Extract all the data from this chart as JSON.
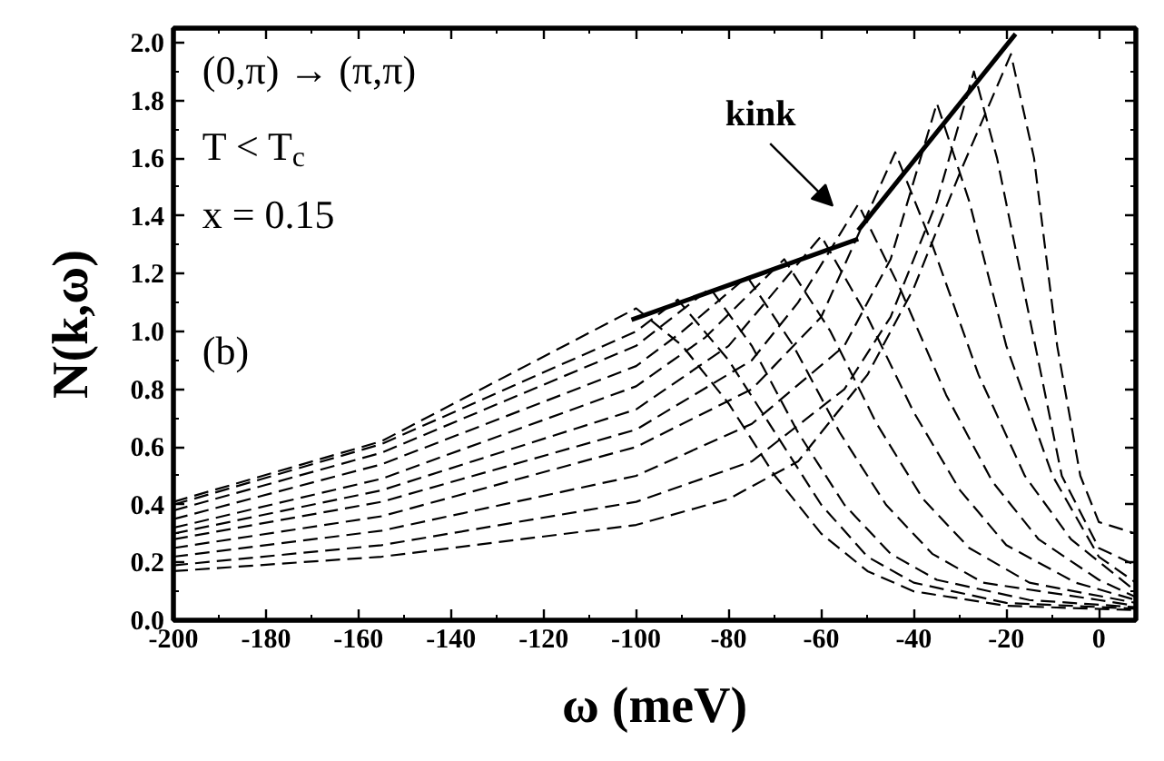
{
  "chart_data": {
    "type": "line",
    "xlabel": "ω (meV)",
    "ylabel": "N(k,ω)",
    "xlim": [
      -200,
      8
    ],
    "ylim": [
      0,
      2.05
    ],
    "xticks": [
      -200,
      {
        "value": -190,
        "label": null
      },
      -180,
      {
        "value": -170,
        "label": null
      },
      -160,
      {
        "value": -150,
        "label": null
      },
      -140,
      {
        "value": -130,
        "label": null
      },
      -120,
      {
        "value": -110,
        "label": null
      },
      -100,
      {
        "value": -90,
        "label": null
      },
      -80,
      {
        "value": -70,
        "label": null
      },
      -60,
      {
        "value": -50,
        "label": null
      },
      -40,
      {
        "value": -30,
        "label": null
      },
      -20,
      {
        "value": -10,
        "label": null
      },
      0
    ],
    "yticks": [
      {
        "value": 0,
        "label": "0.0"
      },
      {
        "value": 0.1,
        "label": null
      },
      {
        "value": 0.2,
        "label": "0.2"
      },
      {
        "value": 0.3,
        "label": null
      },
      {
        "value": 0.4,
        "label": "0.4"
      },
      {
        "value": 0.5,
        "label": null
      },
      {
        "value": 0.6,
        "label": "0.6"
      },
      {
        "value": 0.7,
        "label": null
      },
      {
        "value": 0.8,
        "label": "0.8"
      },
      {
        "value": 0.9,
        "label": null
      },
      {
        "value": 1.0,
        "label": "1.0"
      },
      {
        "value": 1.1,
        "label": null
      },
      {
        "value": 1.2,
        "label": "1.2"
      },
      {
        "value": 1.3,
        "label": null
      },
      {
        "value": 1.4,
        "label": "1.4"
      },
      {
        "value": 1.5,
        "label": null
      },
      {
        "value": 1.6,
        "label": "1.6"
      },
      {
        "value": 1.7,
        "label": null
      },
      {
        "value": 1.8,
        "label": "1.8"
      },
      {
        "value": 1.9,
        "label": null
      },
      {
        "value": 2.0,
        "label": "2.0"
      }
    ],
    "line_style": "dashed",
    "series": [
      {
        "color": "#000000",
        "x": [
          -200,
          -155,
          -100,
          -90,
          -80,
          -70,
          -60,
          -50,
          -40,
          -20,
          8
        ],
        "values": [
          0.41,
          0.62,
          1.08,
          0.95,
          0.75,
          0.5,
          0.3,
          0.17,
          0.1,
          0.05,
          0.035
        ]
      },
      {
        "color": "#000000",
        "x": [
          -200,
          -155,
          -100,
          -91,
          -80,
          -70,
          -60,
          -50,
          -40,
          -20,
          8
        ],
        "values": [
          0.4,
          0.61,
          1.0,
          1.11,
          0.9,
          0.65,
          0.4,
          0.22,
          0.13,
          0.06,
          0.04
        ]
      },
      {
        "color": "#000000",
        "x": [
          -200,
          -155,
          -100,
          -84,
          -75,
          -65,
          -55,
          -45,
          -35,
          -15,
          8
        ],
        "values": [
          0.38,
          0.58,
          0.95,
          1.15,
          0.95,
          0.65,
          0.4,
          0.23,
          0.14,
          0.07,
          0.045
        ]
      },
      {
        "color": "#000000",
        "x": [
          -200,
          -155,
          -100,
          -90,
          -76,
          -66,
          -56,
          -46,
          -36,
          -25,
          0,
          8
        ],
        "values": [
          0.35,
          0.54,
          0.88,
          1.0,
          1.19,
          0.95,
          0.65,
          0.4,
          0.23,
          0.13,
          0.07,
          0.05
        ]
      },
      {
        "color": "#000000",
        "x": [
          -200,
          -155,
          -100,
          -85,
          -68,
          -58,
          -48,
          -38,
          -28,
          -15,
          8
        ],
        "values": [
          0.32,
          0.49,
          0.81,
          0.98,
          1.25,
          1.0,
          0.68,
          0.42,
          0.25,
          0.13,
          0.06
        ]
      },
      {
        "color": "#000000",
        "x": [
          -200,
          -155,
          -100,
          -80,
          -60,
          -50,
          -40,
          -30,
          -20,
          -5,
          8
        ],
        "values": [
          0.3,
          0.45,
          0.73,
          0.95,
          1.33,
          1.05,
          0.72,
          0.45,
          0.26,
          0.13,
          0.07
        ]
      },
      {
        "color": "#000000",
        "x": [
          -200,
          -155,
          -100,
          -75,
          -65,
          -52,
          -43,
          -33,
          -23,
          -13,
          0,
          8
        ],
        "values": [
          0.28,
          0.41,
          0.66,
          0.9,
          1.1,
          1.44,
          1.15,
          0.78,
          0.48,
          0.28,
          0.14,
          0.08
        ]
      },
      {
        "color": "#000000",
        "x": [
          -200,
          -155,
          -100,
          -75,
          -60,
          -44,
          -36,
          -26,
          -16,
          -6,
          8
        ],
        "values": [
          0.25,
          0.36,
          0.6,
          0.8,
          1.05,
          1.62,
          1.3,
          0.85,
          0.5,
          0.28,
          0.1
        ]
      },
      {
        "color": "#000000",
        "x": [
          -200,
          -155,
          -100,
          -75,
          -55,
          -45,
          -35,
          -28,
          -20,
          -10,
          0,
          8
        ],
        "values": [
          0.22,
          0.31,
          0.5,
          0.68,
          0.95,
          1.25,
          1.79,
          1.45,
          0.95,
          0.5,
          0.22,
          0.13
        ]
      },
      {
        "color": "#000000",
        "x": [
          -200,
          -155,
          -100,
          -75,
          -55,
          -45,
          -35,
          -27,
          -22,
          -15,
          -8,
          0,
          8
        ],
        "values": [
          0.19,
          0.26,
          0.41,
          0.55,
          0.8,
          1.05,
          1.45,
          1.9,
          1.6,
          1.05,
          0.5,
          0.25,
          0.19
        ]
      },
      {
        "color": "#000000",
        "x": [
          -200,
          -155,
          -100,
          -80,
          -65,
          -50,
          -40,
          -30,
          -19,
          -14,
          -9,
          -4,
          0,
          8
        ],
        "values": [
          0.17,
          0.22,
          0.33,
          0.42,
          0.55,
          0.85,
          1.15,
          1.55,
          1.96,
          1.6,
          0.95,
          0.5,
          0.34,
          0.3
        ]
      },
      {
        "color": "#000000",
        "line_style": "solid",
        "x": [
          -101,
          -52
        ],
        "values": [
          1.04,
          1.32
        ]
      },
      {
        "color": "#000000",
        "line_style": "solid",
        "x": [
          -52,
          -18
        ],
        "values": [
          1.35,
          2.03
        ]
      }
    ],
    "annotations": [
      "(0,π) → (π,π)",
      "T < T$_{c}$",
      "x = 0.15",
      "(b)",
      "kink"
    ]
  }
}
